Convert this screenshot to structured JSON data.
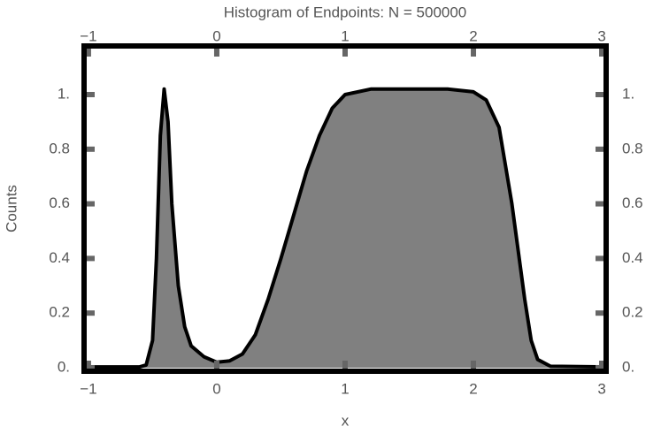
{
  "chart_data": {
    "type": "area",
    "title": "Histogram of Endpoints:  N = 500000",
    "x_label": "x",
    "y_label": "Counts",
    "x": [
      -1.04,
      -0.6,
      -0.55,
      -0.5,
      -0.47,
      -0.44,
      -0.41,
      -0.38,
      -0.35,
      -0.3,
      -0.25,
      -0.2,
      -0.1,
      0,
      0.1,
      0.2,
      0.3,
      0.4,
      0.5,
      0.6,
      0.7,
      0.8,
      0.9,
      1.0,
      1.2,
      1.5,
      1.8,
      2.0,
      2.1,
      2.2,
      2.3,
      2.4,
      2.45,
      2.5,
      2.6,
      3.04
    ],
    "series": [
      {
        "color": "#000000",
        "fill": "#808080",
        "values": [
          0.003,
          0.003,
          0.01,
          0.1,
          0.4,
          0.85,
          1.02,
          0.9,
          0.6,
          0.3,
          0.15,
          0.08,
          0.04,
          0.02,
          0.025,
          0.05,
          0.12,
          0.25,
          0.4,
          0.56,
          0.72,
          0.85,
          0.95,
          1.0,
          1.02,
          1.02,
          1.02,
          1.01,
          0.98,
          0.88,
          0.6,
          0.25,
          0.1,
          0.03,
          0.005,
          0.003
        ]
      }
    ],
    "xlim": [
      -1.034,
      3.034
    ],
    "ylim": [
      -0.013,
      1.178
    ],
    "xticks": [
      {
        "value": -1,
        "label": "−1"
      },
      0,
      1,
      2,
      3
    ],
    "yticks": [
      {
        "value": 0,
        "label": "0."
      },
      0.2,
      0.4,
      0.6,
      0.8,
      {
        "value": 1,
        "label": "1."
      }
    ]
  }
}
